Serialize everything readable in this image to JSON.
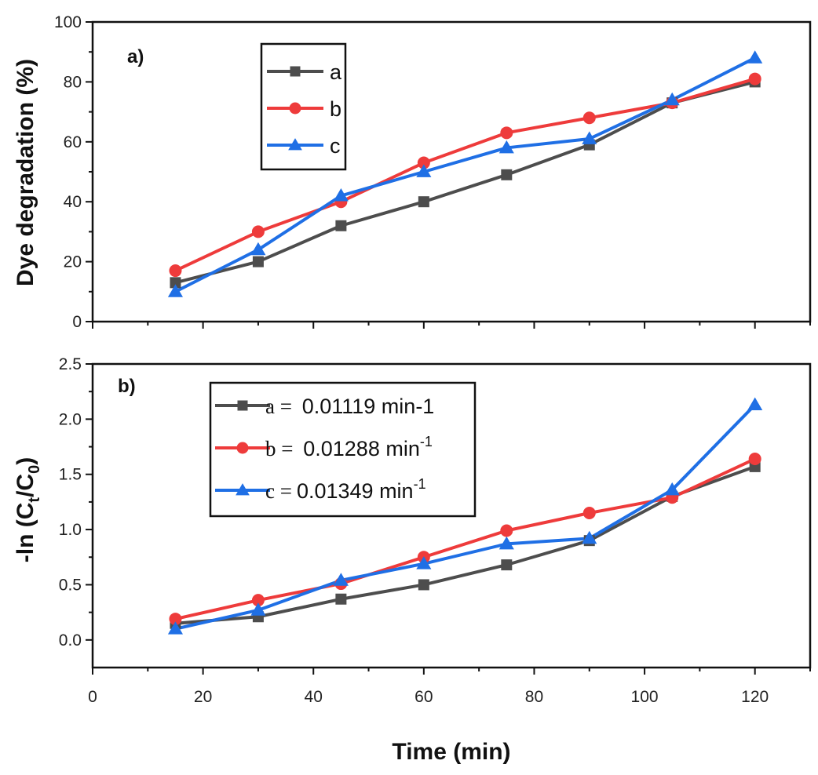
{
  "figure": {
    "x_title": "Time (min)"
  },
  "chart_data": [
    {
      "type": "line",
      "panel_label": "a)",
      "ylabel": "Dye degradation (%)",
      "xlim": [
        0,
        130
      ],
      "ylim": [
        0,
        100
      ],
      "x_ticks": [
        "0",
        "20",
        "40",
        "60",
        "80",
        "100",
        "120"
      ],
      "y_ticks": [
        "0",
        "20",
        "40",
        "60",
        "80",
        "100"
      ],
      "x": [
        15,
        30,
        45,
        60,
        75,
        90,
        105,
        120
      ],
      "series": [
        {
          "name": "a",
          "legend_label": "a",
          "color": "#4d4d4d",
          "marker": "square",
          "values": [
            13,
            20,
            32,
            40,
            49,
            59,
            73,
            80
          ]
        },
        {
          "name": "b",
          "legend_label": "b",
          "color": "#ee3b3b",
          "marker": "circle",
          "values": [
            17,
            30,
            40,
            53,
            63,
            68,
            73,
            81
          ]
        },
        {
          "name": "c",
          "legend_label": "c",
          "color": "#1f6fe5",
          "marker": "triangle",
          "values": [
            10,
            24,
            42,
            50,
            58,
            61,
            74,
            88
          ]
        }
      ]
    },
    {
      "type": "line",
      "panel_label": "b)",
      "ylabel_main": "-ln (C",
      "ylabel_sub1": "t",
      "ylabel_mid": "/C",
      "ylabel_sub2": "0",
      "ylabel_end": ")",
      "xlim": [
        0,
        130
      ],
      "ylim": [
        -0.25,
        2.5
      ],
      "x_ticks": [
        "0",
        "20",
        "40",
        "60",
        "80",
        "100",
        "120"
      ],
      "y_ticks": [
        "0.0",
        "0.5",
        "1.0",
        "1.5",
        "2.0",
        "2.5"
      ],
      "x": [
        15,
        30,
        45,
        60,
        75,
        90,
        105,
        120
      ],
      "series": [
        {
          "name": "a",
          "legend_prefix": "a = ",
          "legend_value": "0.01119 min-1",
          "legend_sup": "",
          "color": "#4d4d4d",
          "marker": "square",
          "values": [
            0.15,
            0.21,
            0.37,
            0.5,
            0.68,
            0.9,
            1.3,
            1.57
          ]
        },
        {
          "name": "b",
          "legend_prefix": "b = ",
          "legend_value": "0.01288 min",
          "legend_sup": "-1",
          "color": "#ee3b3b",
          "marker": "circle",
          "values": [
            0.19,
            0.36,
            0.51,
            0.75,
            0.99,
            1.15,
            1.29,
            1.64
          ]
        },
        {
          "name": "c",
          "legend_prefix": "c =",
          "legend_value": "0.01349 min",
          "legend_sup": "-1",
          "color": "#1f6fe5",
          "marker": "triangle",
          "values": [
            0.1,
            0.27,
            0.54,
            0.69,
            0.87,
            0.92,
            1.36,
            2.13
          ]
        }
      ]
    }
  ]
}
